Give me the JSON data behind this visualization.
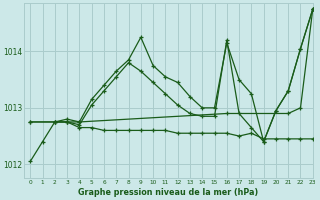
{
  "background_color": "#cce8e8",
  "grid_color": "#aacccc",
  "line_color": "#1a5c1a",
  "title": "Graphe pression niveau de la mer (hPa)",
  "xlim": [
    -0.5,
    23
  ],
  "ylim": [
    1011.75,
    1014.85
  ],
  "yticks": [
    1012,
    1013,
    1014
  ],
  "xticks": [
    0,
    1,
    2,
    3,
    4,
    5,
    6,
    7,
    8,
    9,
    10,
    11,
    12,
    13,
    14,
    15,
    16,
    17,
    18,
    19,
    20,
    21,
    22,
    23
  ],
  "series": [
    {
      "x": [
        0,
        1,
        2,
        3,
        4,
        5,
        6,
        7,
        8,
        9,
        10,
        11,
        12,
        13,
        14,
        15,
        16,
        17,
        18,
        19,
        20,
        21,
        22,
        23
      ],
      "y": [
        1012.05,
        1012.4,
        1012.75,
        1012.8,
        1012.75,
        1013.15,
        1013.4,
        1013.65,
        1013.85,
        1014.25,
        1013.75,
        1013.55,
        1013.45,
        1013.2,
        1013.0,
        1013.0,
        1014.15,
        1013.5,
        1013.25,
        1012.4,
        1012.95,
        1013.3,
        1014.05,
        1014.75
      ]
    },
    {
      "x": [
        0,
        2,
        3,
        4,
        16,
        21,
        22,
        23
      ],
      "y": [
        1012.75,
        1012.75,
        1012.75,
        1012.75,
        1012.9,
        1012.9,
        1013.0,
        1014.75
      ]
    },
    {
      "x": [
        2,
        3,
        4,
        5,
        6,
        7,
        8,
        9,
        10,
        11,
        12,
        13,
        14,
        15,
        16,
        17,
        18,
        19,
        20,
        21,
        22,
        23
      ],
      "y": [
        1012.75,
        1012.75,
        1012.7,
        1013.05,
        1013.3,
        1013.55,
        1013.8,
        1013.65,
        1013.45,
        1013.25,
        1013.05,
        1012.9,
        1012.85,
        1012.85,
        1014.2,
        1012.9,
        1012.65,
        1012.4,
        1012.95,
        1013.3,
        1014.05,
        1014.75
      ]
    },
    {
      "x": [
        0,
        2,
        3,
        4,
        5,
        6,
        7,
        8,
        9,
        10,
        11,
        12,
        13,
        14,
        15,
        16,
        17,
        18,
        19,
        20,
        21,
        22,
        23
      ],
      "y": [
        1012.75,
        1012.75,
        1012.75,
        1012.65,
        1012.65,
        1012.6,
        1012.6,
        1012.6,
        1012.6,
        1012.6,
        1012.6,
        1012.55,
        1012.55,
        1012.55,
        1012.55,
        1012.55,
        1012.5,
        1012.55,
        1012.45,
        1012.45,
        1012.45,
        1012.45,
        1012.45
      ]
    }
  ]
}
